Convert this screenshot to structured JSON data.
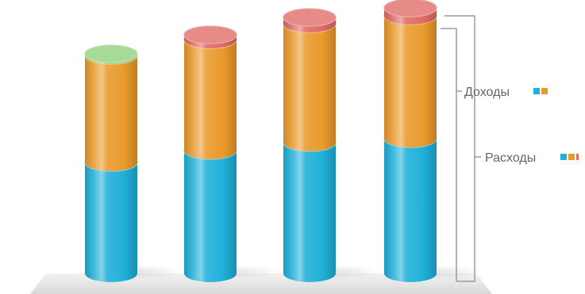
{
  "corner_label": "",
  "colors": {
    "blue": "#1fb0d8",
    "orange": "#e99a2c",
    "red": "#e06a66",
    "green": "#8fcf7a"
  },
  "chart_data": {
    "type": "bar",
    "stacked": true,
    "style": "3d-cylinder",
    "categories": [
      "",
      "",
      "",
      ""
    ],
    "series": [
      {
        "color": "blue",
        "values": [
          140,
          155,
          165,
          170
        ]
      },
      {
        "color": "orange",
        "values": [
          135,
          140,
          150,
          155
        ]
      },
      {
        "color": "red",
        "values": [
          0,
          6,
          8,
          10
        ]
      },
      {
        "color": "green",
        "values": [
          2,
          0,
          0,
          0
        ]
      }
    ],
    "ylim": [
      0,
      345
    ],
    "grid": false,
    "legend": [
      {
        "label": "Доходы",
        "swatches": [
          "blue",
          "orange"
        ]
      },
      {
        "label": "Расходы",
        "swatches": [
          "blue",
          "orange",
          "red"
        ]
      }
    ]
  }
}
